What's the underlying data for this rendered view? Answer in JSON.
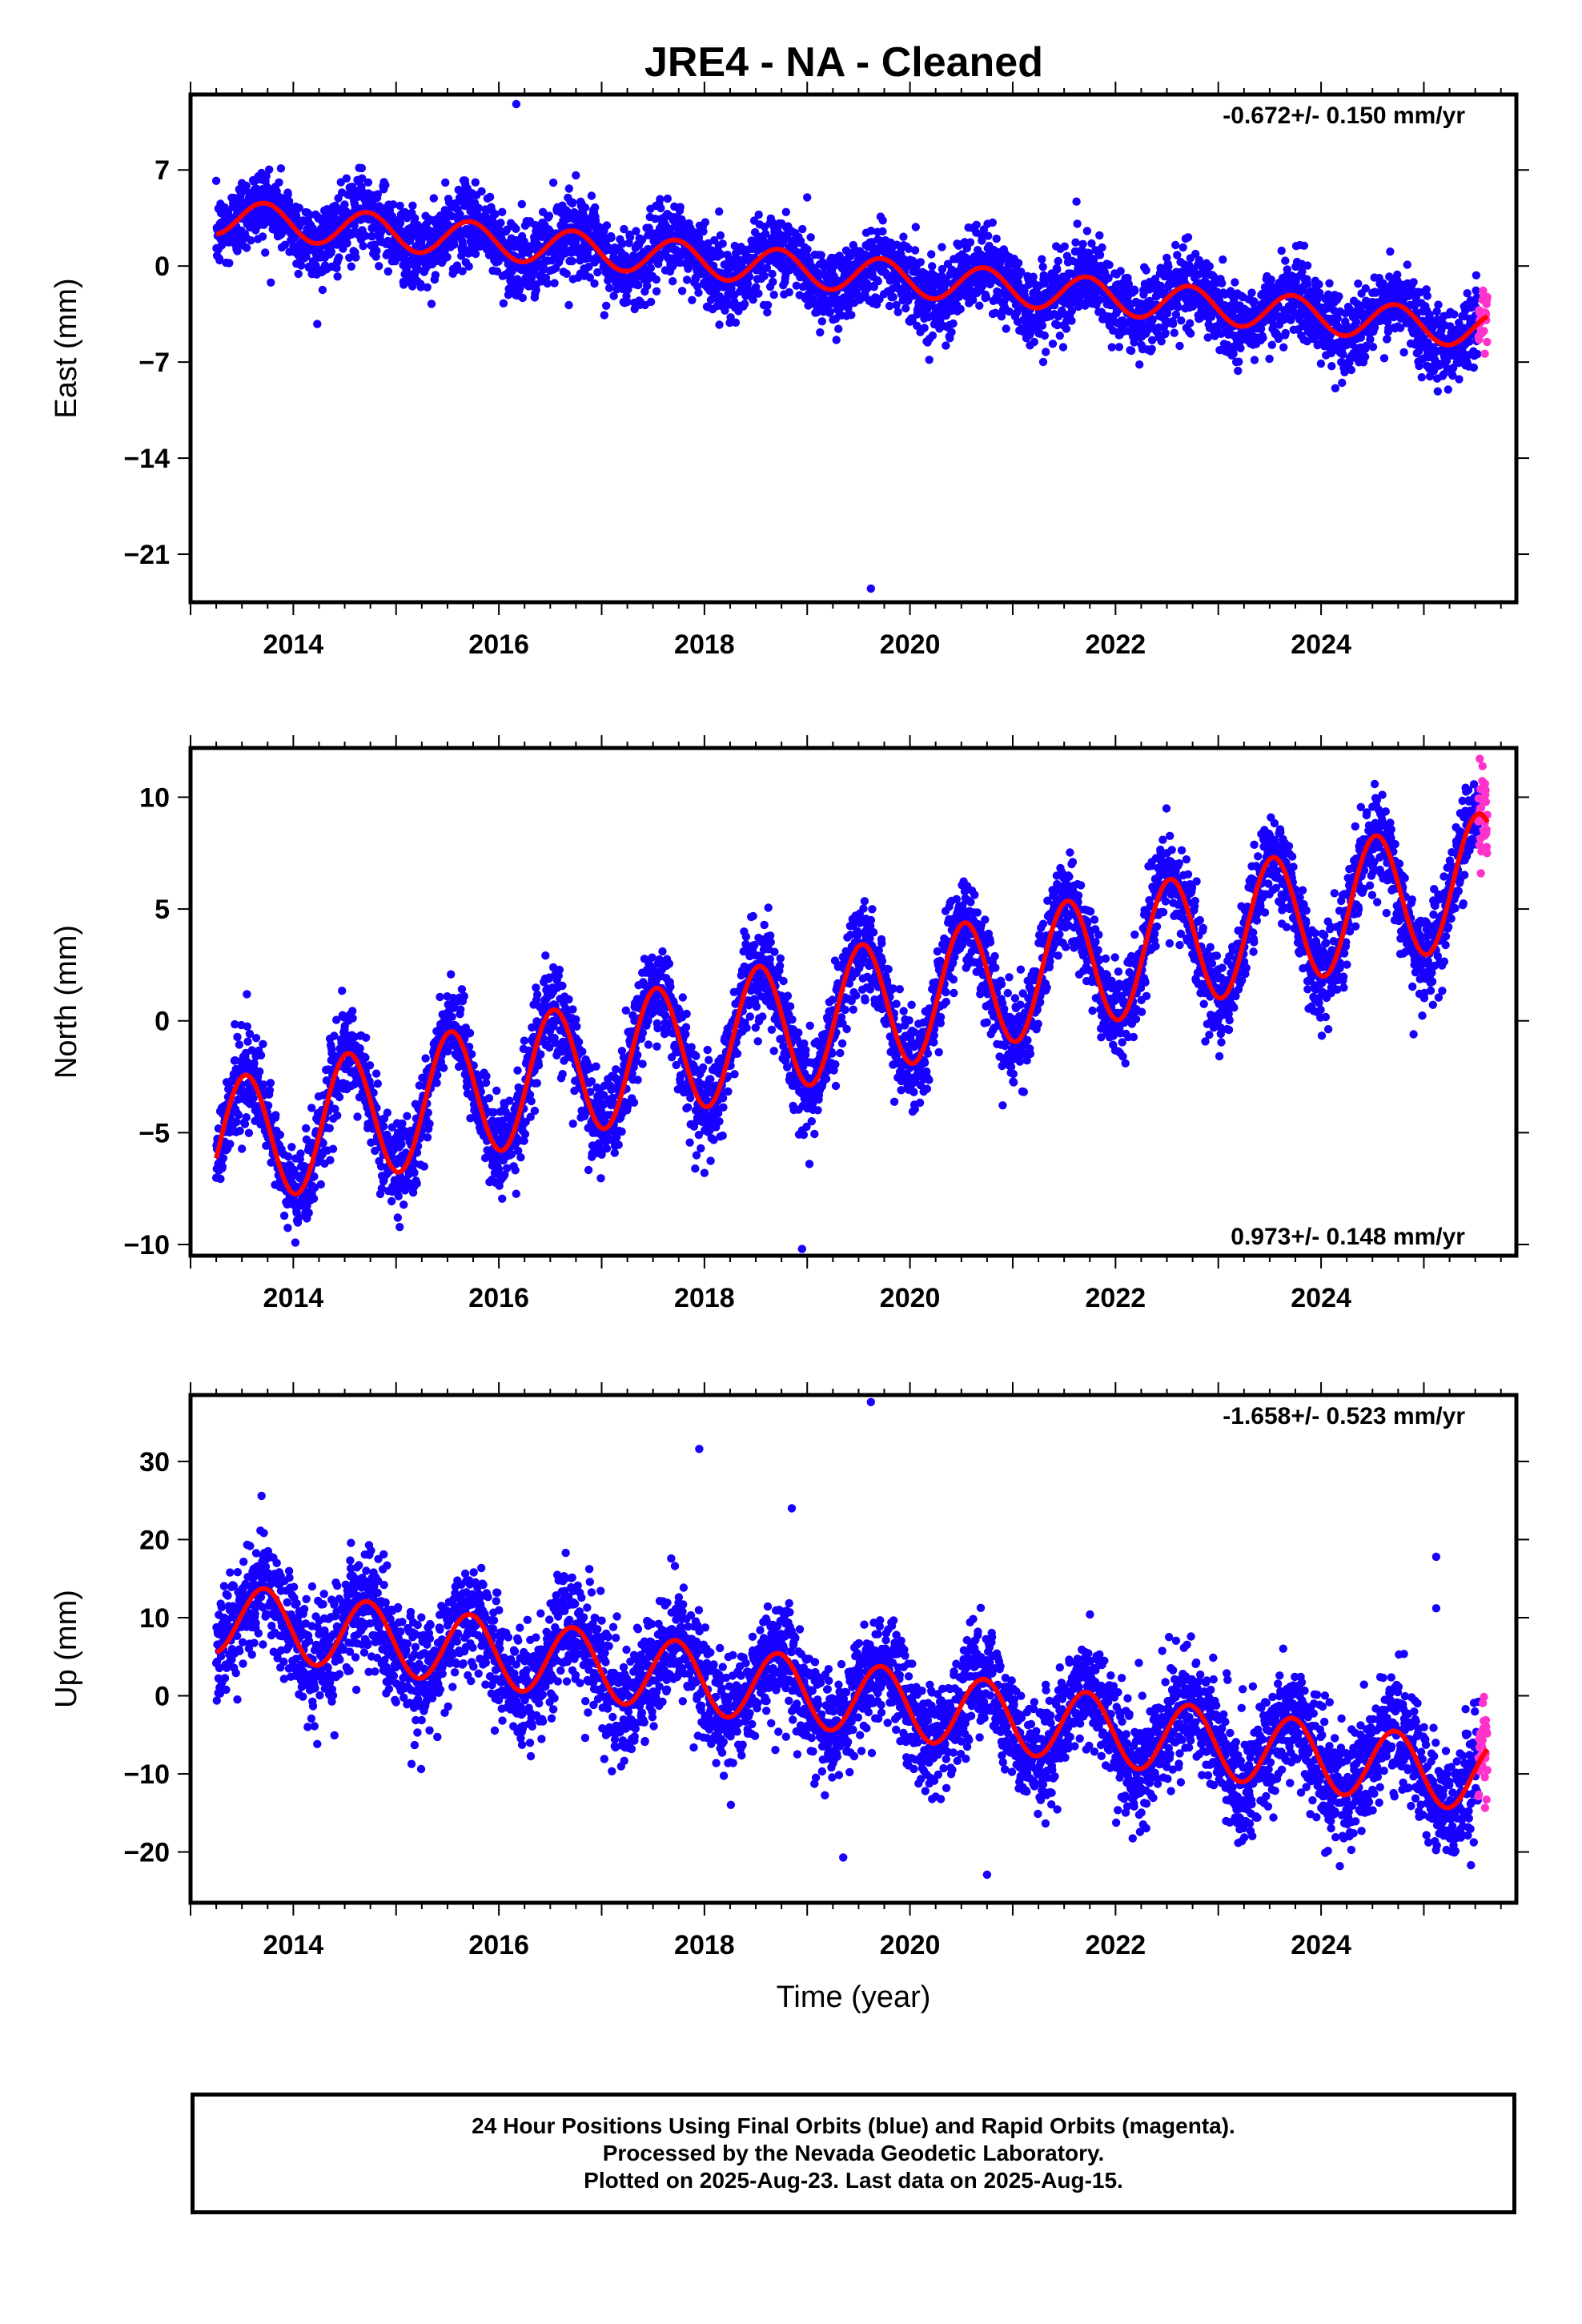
{
  "chart_data": [
    {
      "type": "scatter",
      "title": "JRE4  - NA - Cleaned",
      "xlabel": "",
      "ylabel": "East (mm)",
      "xlim": [
        2013.0,
        2025.9
      ],
      "ylim": [
        -24.5,
        12.5
      ],
      "xticks": [
        2014,
        2016,
        2018,
        2020,
        2022,
        2024
      ],
      "xtick_labels": [
        "2014",
        "2016",
        "2018",
        "2020",
        "2022",
        "2024"
      ],
      "yticks": [
        7,
        0,
        -7,
        -14,
        -21
      ],
      "ytick_labels": [
        "7",
        "0",
        "−7",
        "−14",
        "−21"
      ],
      "rate_text": "-0.672+/- 0.150 mm/yr",
      "rate_position": "top-right",
      "model": {
        "start": 2013.25,
        "end": 2025.62,
        "offset": 3.6,
        "rate": -0.672,
        "annual_amp": 1.3,
        "annual_peak": 2013.72
      },
      "scatter_spread": 1.4,
      "outliers": [
        {
          "x": 2016.17,
          "y": 11.8
        },
        {
          "x": 2019.62,
          "y": -23.5
        },
        {
          "x": 2019.0,
          "y": 5.0
        },
        {
          "x": 2021.62,
          "y": 4.7
        }
      ],
      "series": [
        {
          "label": "Final Orbits",
          "color": "#1800ff",
          "values": "daily positions 2013.25–2025.53"
        },
        {
          "label": "Rapid Orbits",
          "color": "#ff33cc",
          "values": "daily positions 2025.53–2025.62"
        },
        {
          "label": "Model fit",
          "color": "#ff0000"
        }
      ]
    },
    {
      "type": "scatter",
      "title": "",
      "xlabel": "",
      "ylabel": "North (mm)",
      "xlim": [
        2013.0,
        2025.9
      ],
      "ylim": [
        -10.5,
        12.2
      ],
      "xticks": [
        2014,
        2016,
        2018,
        2020,
        2022,
        2024
      ],
      "xtick_labels": [
        "2014",
        "2016",
        "2018",
        "2020",
        "2022",
        "2024"
      ],
      "yticks": [
        10,
        5,
        0,
        -5,
        -10
      ],
      "ytick_labels": [
        "10",
        "5",
        "0",
        "−5",
        "−10"
      ],
      "rate_text": "0.973+/- 0.148 mm/yr",
      "rate_position": "bottom-right",
      "model": {
        "start": 2013.25,
        "end": 2025.62,
        "offset": -5.6,
        "rate": 0.973,
        "annual_amp": 2.9,
        "annual_peak": 2013.53
      },
      "scatter_spread": 1.0,
      "outliers": [
        {
          "x": 2018.95,
          "y": -10.2
        },
        {
          "x": 2018.0,
          "y": -6.8
        },
        {
          "x": 2024.9,
          "y": -0.6
        }
      ],
      "series": [
        {
          "label": "Final Orbits",
          "color": "#1800ff"
        },
        {
          "label": "Rapid Orbits",
          "color": "#ff33cc"
        },
        {
          "label": "Model fit",
          "color": "#ff0000"
        }
      ]
    },
    {
      "type": "scatter",
      "title": "",
      "xlabel": "Time (year)",
      "ylabel": "Up (mm)",
      "xlim": [
        2013.0,
        2025.9
      ],
      "ylim": [
        -26.5,
        38.5
      ],
      "xticks": [
        2014,
        2016,
        2018,
        2020,
        2022,
        2024
      ],
      "xtick_labels": [
        "2014",
        "2016",
        "2018",
        "2020",
        "2022",
        "2024"
      ],
      "yticks": [
        30,
        20,
        10,
        0,
        -10,
        -20
      ],
      "ytick_labels": [
        "30",
        "20",
        "10",
        "0",
        "−10",
        "−20"
      ],
      "rate_text": "-1.658+/- 0.523 mm/yr",
      "rate_position": "top-right",
      "model": {
        "start": 2013.25,
        "end": 2025.62,
        "offset": 10.0,
        "rate": -1.658,
        "annual_amp": 4.5,
        "annual_peak": 2013.72
      },
      "scatter_spread": 3.6,
      "outliers": [
        {
          "x": 2019.62,
          "y": 37.6
        },
        {
          "x": 2017.95,
          "y": 31.6
        },
        {
          "x": 2018.85,
          "y": 24.0
        },
        {
          "x": 2025.12,
          "y": 17.8
        },
        {
          "x": 2025.12,
          "y": 11.2
        },
        {
          "x": 2020.75,
          "y": -22.9
        },
        {
          "x": 2019.35,
          "y": -20.7
        }
      ],
      "series": [
        {
          "label": "Final Orbits",
          "color": "#1800ff"
        },
        {
          "label": "Rapid Orbits",
          "color": "#ff33cc"
        },
        {
          "label": "Model fit",
          "color": "#ff0000"
        }
      ]
    }
  ],
  "footer": {
    "line1": "24 Hour Positions Using Final Orbits (blue) and Rapid Orbits (magenta).",
    "line2": "Processed by the Nevada Geodetic Laboratory.",
    "line3": "Plotted on 2025-Aug-23. Last data on 2025-Aug-15."
  }
}
